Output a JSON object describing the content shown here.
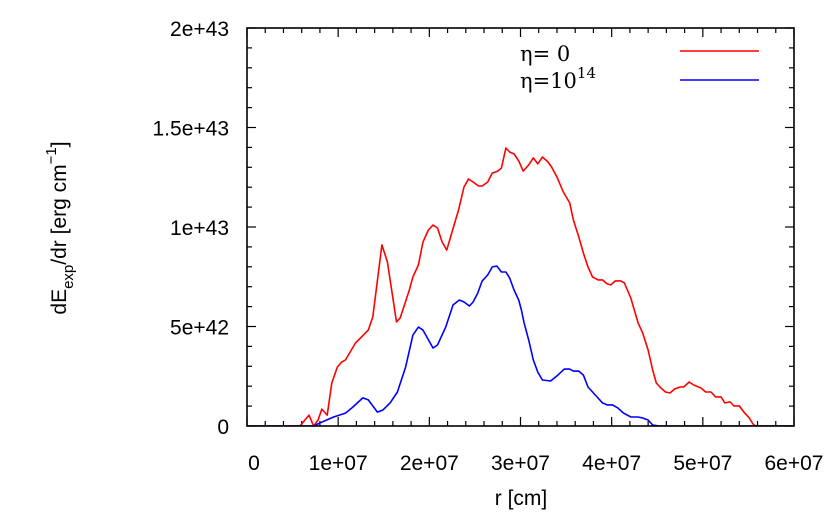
{
  "chart_data": {
    "type": "line",
    "title": "",
    "xlabel": "r [cm]",
    "ylabel": "dE_exp/dr [erg cm^-1]",
    "ylabel_parts": {
      "main": "dE",
      "sub": "exp",
      "after": "/dr [erg cm",
      "sup": "−1",
      "close": "]"
    },
    "xlim": [
      0,
      60000000.0
    ],
    "ylim": [
      0,
      2e+43
    ],
    "grid": false,
    "legend_position": "top-right inside",
    "x_ticks": [
      0,
      10000000.0,
      20000000.0,
      30000000.0,
      40000000.0,
      50000000.0,
      60000000.0
    ],
    "x_tick_labels": [
      "0",
      "1e+07",
      "2e+07",
      "3e+07",
      "4e+07",
      "5e+07",
      "6e+07"
    ],
    "y_ticks": [
      0,
      5e+42,
      1e+43,
      1.5e+43,
      2e+43
    ],
    "y_tick_labels": [
      "0",
      "5e+42",
      "1e+43",
      "1.5e+43",
      "2e+43"
    ],
    "x_minor_per_major": 5,
    "y_minor_per_major": 5,
    "series": [
      {
        "name": "η= 0",
        "legend_main": "η= 0",
        "legend_sup": "",
        "color": "#ff0000",
        "x": [
          0,
          5800000.0,
          6800000.0,
          7300000.0,
          7800000.0,
          8200000.0,
          8800000.0,
          9300000.0,
          9900000.0,
          10400000.0,
          10800000.0,
          11900000.0,
          13300000.0,
          13800000.0,
          14800000.0,
          15400000.0,
          16400000.0,
          16800000.0,
          17800000.0,
          18200000.0,
          18800000.0,
          19300000.0,
          19900000.0,
          20400000.0,
          20900000.0,
          21400000.0,
          21900000.0,
          22300000.0,
          23200000.0,
          23800000.0,
          24300000.0,
          24800000.0,
          25400000.0,
          25800000.0,
          26400000.0,
          26900000.0,
          27500000.0,
          27900000.0,
          28400000.0,
          28800000.0,
          29300000.0,
          29800000.0,
          30300000.0,
          30900000.0,
          31400000.0,
          31900000.0,
          32400000.0,
          33000000.0,
          33400000.0,
          34000000.0,
          34700000.0,
          35400000.0,
          35800000.0,
          36400000.0,
          36900000.0,
          37400000.0,
          37900000.0,
          38500000.0,
          39000000.0,
          39500000.0,
          39900000.0,
          40400000.0,
          41000000.0,
          41400000.0,
          42100000.0,
          42900000.0,
          43400000.0,
          44000000.0,
          44500000.0,
          44900000.0,
          45400000.0,
          45900000.0,
          46400000.0,
          46900000.0,
          47500000.0,
          47900000.0,
          48500000.0,
          49000000.0,
          49800000.0,
          50300000.0,
          50900000.0,
          51400000.0,
          52000000.0,
          52400000.0,
          53000000.0,
          53400000.0,
          54000000.0,
          54500000.0,
          55100000.0,
          55500000.0,
          55800000.0,
          60000000.0
        ],
        "y": [
          0,
          0,
          5.5e+41,
          0,
          3e+41,
          8.5e+41,
          5.5e+41,
          2.16e+42,
          2.96e+42,
          3.22e+42,
          3.32e+42,
          4.17e+42,
          4.82e+42,
          5.48e+42,
          9.1e+42,
          8.24e+42,
          5.23e+42,
          5.43e+42,
          6.83e+42,
          7.49e+42,
          8.09e+42,
          9.25e+42,
          9.85e+42,
          1.01e+43,
          9.95e+42,
          9.25e+42,
          8.84e+42,
          9.45e+42,
          1.085e+43,
          1.201e+43,
          1.241e+43,
          1.226e+43,
          1.206e+43,
          1.206e+43,
          1.226e+43,
          1.271e+43,
          1.281e+43,
          1.296e+43,
          1.397e+43,
          1.377e+43,
          1.367e+43,
          1.332e+43,
          1.281e+43,
          1.312e+43,
          1.347e+43,
          1.317e+43,
          1.352e+43,
          1.327e+43,
          1.302e+43,
          1.251e+43,
          1.176e+43,
          1.121e+43,
          1.035e+43,
          9.5e+42,
          8.69e+42,
          7.99e+42,
          7.49e+42,
          7.34e+42,
          7.34e+42,
          7.14e+42,
          7.09e+42,
          7.29e+42,
          7.29e+42,
          7.19e+42,
          6.43e+42,
          5.18e+42,
          4.67e+42,
          3.82e+42,
          2.81e+42,
          2.16e+42,
          1.91e+42,
          1.71e+42,
          1.66e+42,
          1.86e+42,
          1.96e+42,
          1.96e+42,
          2.21e+42,
          2.06e+42,
          1.91e+42,
          1.71e+42,
          1.71e+42,
          1.46e+42,
          1.46e+42,
          1.16e+42,
          1.21e+42,
          1.01e+42,
          1.01e+42,
          7e+41,
          4e+41,
          1e+41,
          0,
          0
        ]
      },
      {
        "name": "η=10^14",
        "legend_main": "η=10",
        "legend_sup": "14",
        "color": "#0000ff",
        "x": [
          0,
          7300000.0,
          8000000.0,
          9500000.0,
          10800000.0,
          11600000.0,
          12700000.0,
          13300000.0,
          14300000.0,
          14900000.0,
          15700000.0,
          16500000.0,
          17400000.0,
          18200000.0,
          18800000.0,
          19300000.0,
          20400000.0,
          20900000.0,
          21800000.0,
          22600000.0,
          23300000.0,
          23800000.0,
          24400000.0,
          24800000.0,
          25300000.0,
          25800000.0,
          26400000.0,
          26900000.0,
          27400000.0,
          27900000.0,
          28400000.0,
          28800000.0,
          29300000.0,
          29800000.0,
          30100000.0,
          30400000.0,
          30900000.0,
          31400000.0,
          31900000.0,
          32400000.0,
          33300000.0,
          34100000.0,
          34800000.0,
          35400000.0,
          35800000.0,
          36400000.0,
          36900000.0,
          37400000.0,
          38200000.0,
          39000000.0,
          39500000.0,
          40100000.0,
          40700000.0,
          41300000.0,
          42100000.0,
          42900000.0,
          43400000.0,
          44000000.0,
          44500000.0,
          45200000.0,
          60000000.0
        ],
        "y": [
          0,
          0,
          1.5e+41,
          4.5e+41,
          6.5e+41,
          9.5e+41,
          1.41e+42,
          1.31e+42,
          7e+41,
          8e+41,
          1.16e+42,
          1.71e+42,
          2.96e+42,
          4.57e+42,
          4.97e+42,
          4.82e+42,
          3.92e+42,
          4.07e+42,
          4.97e+42,
          6.08e+42,
          6.33e+42,
          6.23e+42,
          6.03e+42,
          6.23e+42,
          6.68e+42,
          7.29e+42,
          7.59e+42,
          7.99e+42,
          8.04e+42,
          7.74e+42,
          7.74e+42,
          7.44e+42,
          6.83e+42,
          6.33e+42,
          5.83e+42,
          5.18e+42,
          4.32e+42,
          3.32e+42,
          2.71e+42,
          2.31e+42,
          2.26e+42,
          2.56e+42,
          2.86e+42,
          2.86e+42,
          2.76e+42,
          2.76e+42,
          2.56e+42,
          1.96e+42,
          1.56e+42,
          1.16e+42,
          1.06e+42,
          1.06e+42,
          9e+41,
          6.5e+41,
          4.5e+41,
          4.5e+41,
          4e+41,
          3e+41,
          5e+40,
          0,
          0
        ]
      }
    ]
  },
  "axes": {
    "x_title": "r [cm]",
    "y_title_main": "dE",
    "y_title_sub": "exp",
    "y_title_after": "/dr [erg cm",
    "y_title_sup": "−1",
    "y_title_close": "]"
  },
  "legend": {
    "items": [
      {
        "label": "η= 0",
        "sup": "",
        "color": "#ff0000"
      },
      {
        "label": "η=10",
        "sup": "14",
        "color": "#0000ff"
      }
    ]
  }
}
